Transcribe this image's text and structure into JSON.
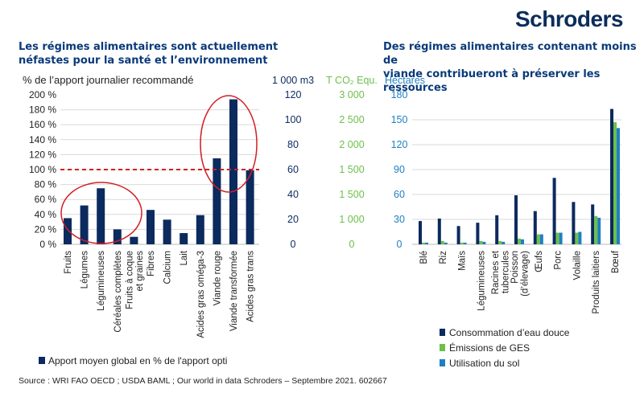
{
  "brand": "Schroders",
  "source": "Source : WRI  FAO  OECD ; USDA  BAML ; Our world in data  Schroders – Septembre 2021. 602667",
  "colors": {
    "navy": "#0b2a5e",
    "green": "#6cc04a",
    "blue": "#1f7fc2",
    "axis_navy": "#0b2a5e",
    "red": "#d02027"
  },
  "chart_data": [
    {
      "type": "bar",
      "title": "Les régimes alimentaires sont actuellement néfastes pour la santé et l’environnement",
      "title_lines": [
        "Les régimes alimentaires sont actuellement",
        "néfastes pour la santé et l’environnement"
      ],
      "ylabel": "% de l’apport journalier recommandé",
      "ylim": [
        0,
        200
      ],
      "yticks": [
        0,
        20,
        40,
        60,
        80,
        100,
        120,
        140,
        160,
        180,
        200
      ],
      "ytick_labels": [
        "0 %",
        "20 %",
        "40 %",
        "60 %",
        "80 %",
        "100 %",
        "120 %",
        "140 %",
        "160 %",
        "180 %",
        "200 %"
      ],
      "reference_line": 100,
      "categories": [
        "Fruits",
        "Légumes",
        "Légumineuses",
        "Céréales complètes",
        [
          "Fruits à coque",
          "et graines"
        ],
        "Fibres",
        "Calcium",
        "Lait",
        "Acides gras oméga-3",
        "Viande rouge",
        "Viande transformée",
        "Acides gras trans"
      ],
      "series": [
        {
          "name": "Apport moyen global en % de l'apport opti",
          "values": [
            35,
            52,
            75,
            20,
            10,
            46,
            33,
            15,
            39,
            115,
            194,
            99
          ]
        }
      ],
      "annotations": [
        "red ellipse around Fruits–Fruits à coque",
        "red ellipse around Viande rouge–Acides gras trans"
      ],
      "legend": "bottom-left",
      "grid": true
    },
    {
      "type": "bar",
      "title": "Des régimes alimentaires contenant moins de viande contribueront à préserver les ressources",
      "title_lines": [
        "Des régimes alimentaires contenant moins de",
        "viande contribueront à préserver les ressources"
      ],
      "axes": [
        {
          "label": "1 000 m3",
          "ticks": [
            "0",
            "20",
            "40",
            "60",
            "80",
            "100",
            "120"
          ]
        },
        {
          "label": "T CO₂ Equ.",
          "ticks": [
            "0",
            "1 000",
            "1 500",
            "1 500",
            "2 000",
            "2 500",
            "3 000"
          ]
        },
        {
          "label": "Hectares",
          "ticks": [
            "0",
            "30",
            "60",
            "90",
            "120",
            "150",
            "180"
          ]
        }
      ],
      "ylim": [
        0,
        180
      ],
      "categories": [
        "Blé",
        "Riz",
        "Maïs",
        "Légumineuses",
        [
          "Racines et",
          "tubercules"
        ],
        [
          "Poisson",
          "(d’élevage)"
        ],
        "Œufs",
        "Porc",
        "Volaille",
        "Produits laitiers",
        "Bœuf"
      ],
      "series": [
        {
          "name": "Consommation d’eau douce",
          "color": "#0b2a5e",
          "values": [
            28,
            31,
            22,
            26,
            35,
            59,
            40,
            80,
            51,
            48,
            163
          ]
        },
        {
          "name": "Émissions de GES",
          "color": "#6cc04a",
          "values": [
            2,
            4,
            2,
            4,
            4,
            7,
            12,
            14,
            14,
            34,
            147
          ]
        },
        {
          "name": "Utilisation du sol",
          "color": "#1f7fc2",
          "values": [
            2,
            2,
            2,
            3,
            3,
            6,
            12,
            14,
            15,
            32,
            140
          ]
        }
      ],
      "legend": "bottom-right",
      "grid": true
    }
  ]
}
